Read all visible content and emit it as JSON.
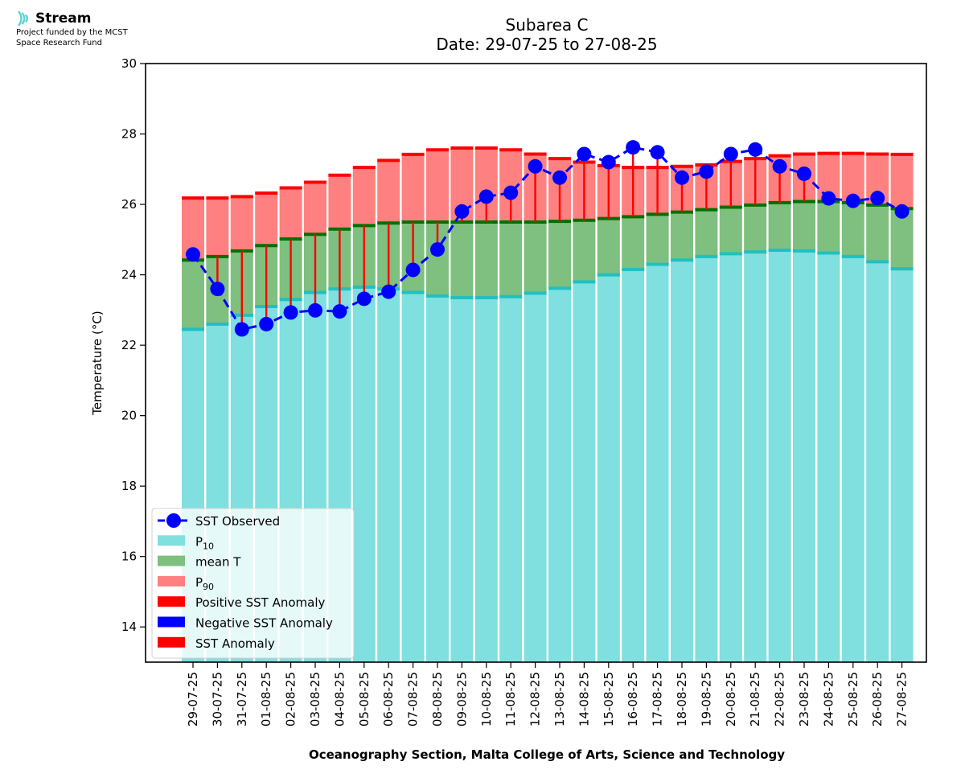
{
  "logo": {
    "name": "Stream",
    "line1": "Project funded by the MCST",
    "line2": "Space Research Fund"
  },
  "chart_data": {
    "type": "bar",
    "title": "Subarea C",
    "subtitle": "Date: 29-07-25 to 27-08-25",
    "ylabel": "Temperature (°C)",
    "xlabel": "Oceanography Section, Malta College of Arts, Science and Technology",
    "ylim": [
      13,
      30
    ],
    "yticks": [
      14,
      16,
      18,
      20,
      22,
      24,
      26,
      28,
      30
    ],
    "grid": false,
    "legend_position": "bottom-left",
    "categories": [
      "29-07-25",
      "30-07-25",
      "31-07-25",
      "01-08-25",
      "02-08-25",
      "03-08-25",
      "04-08-25",
      "05-08-25",
      "06-08-25",
      "07-08-25",
      "08-08-25",
      "09-08-25",
      "10-08-25",
      "11-08-25",
      "12-08-25",
      "13-08-25",
      "14-08-25",
      "15-08-25",
      "16-08-25",
      "17-08-25",
      "18-08-25",
      "19-08-25",
      "20-08-25",
      "21-08-25",
      "22-08-25",
      "23-08-25",
      "24-08-25",
      "25-08-25",
      "26-08-25",
      "27-08-25"
    ],
    "series": [
      {
        "name": "P10",
        "color": "#80dfdf",
        "values": [
          22.45,
          22.6,
          22.85,
          23.1,
          23.3,
          23.5,
          23.6,
          23.65,
          23.6,
          23.5,
          23.4,
          23.35,
          23.35,
          23.38,
          23.48,
          23.62,
          23.8,
          24.0,
          24.15,
          24.3,
          24.42,
          24.52,
          24.6,
          24.65,
          24.7,
          24.68,
          24.62,
          24.52,
          24.37,
          24.17
        ]
      },
      {
        "name": "mean T",
        "color": "#7fbf7f",
        "values": [
          24.42,
          24.52,
          24.68,
          24.83,
          25.02,
          25.15,
          25.3,
          25.4,
          25.47,
          25.5,
          25.5,
          25.5,
          25.5,
          25.5,
          25.5,
          25.52,
          25.55,
          25.6,
          25.65,
          25.72,
          25.78,
          25.85,
          25.92,
          25.98,
          26.05,
          26.08,
          26.08,
          26.05,
          25.98,
          25.88
        ]
      },
      {
        "name": "P90",
        "color": "#ff8080",
        "values": [
          26.18,
          26.18,
          26.22,
          26.32,
          26.47,
          26.63,
          26.83,
          27.05,
          27.25,
          27.42,
          27.55,
          27.6,
          27.6,
          27.55,
          27.43,
          27.3,
          27.2,
          27.1,
          27.05,
          27.05,
          27.08,
          27.12,
          27.22,
          27.3,
          27.38,
          27.43,
          27.45,
          27.45,
          27.43,
          27.42
        ]
      },
      {
        "name": "SST Observed",
        "color": "#0000ff",
        "values": [
          24.58,
          23.6,
          22.45,
          22.6,
          22.93,
          22.99,
          22.96,
          23.32,
          23.52,
          24.14,
          24.72,
          25.8,
          26.22,
          26.33,
          27.08,
          26.76,
          27.43,
          27.2,
          27.62,
          27.48,
          26.76,
          26.93,
          27.43,
          27.56,
          27.08,
          26.87,
          26.17,
          26.1,
          26.18,
          25.8
        ]
      }
    ],
    "legend": [
      {
        "label": "SST Observed",
        "sub": "",
        "color": "#0000ff",
        "kind": "line-marker"
      },
      {
        "label": "P",
        "sub": "10",
        "color": "#80dfdf",
        "kind": "patch"
      },
      {
        "label": "mean T",
        "sub": "",
        "color": "#7fbf7f",
        "kind": "patch"
      },
      {
        "label": "P",
        "sub": "90",
        "color": "#ff8080",
        "kind": "patch"
      },
      {
        "label": "Positive SST Anomaly",
        "sub": "",
        "color": "#ff0000",
        "kind": "patch"
      },
      {
        "label": "Negative SST Anomaly",
        "sub": "",
        "color": "#0000ff",
        "kind": "patch"
      },
      {
        "label": "SST Anomaly",
        "sub": "",
        "color": "#ff0000",
        "kind": "patch"
      }
    ],
    "colors": {
      "p10_edge": "#20c0c0",
      "mean_edge": "#007000",
      "p90_edge": "#ff0000",
      "anomaly": "#ff0000"
    }
  }
}
